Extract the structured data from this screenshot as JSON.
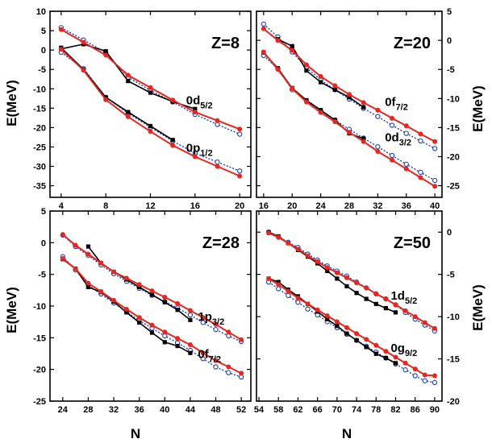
{
  "y_axis_label": "E(MeV)",
  "x_axis_label": "N",
  "colors": {
    "exp": "#000000",
    "fit": "#e8251e",
    "calc": "#1a3fb0"
  },
  "chart_data": [
    {
      "type": "line",
      "panel_label": "Z=8",
      "xlabel": "N",
      "ylabel": "E(MeV)",
      "xlim": [
        3,
        21
      ],
      "ylim": [
        -38,
        10
      ],
      "xticks": [
        4,
        8,
        12,
        16,
        20
      ],
      "yticks": [
        10,
        5,
        0,
        -5,
        -10,
        -15,
        -20,
        -25,
        -30,
        -35
      ],
      "y_axis_side": "left",
      "series": [
        {
          "role": "exp",
          "state": "0d5/2",
          "x": [
            4,
            6,
            8,
            10,
            12,
            14,
            16
          ],
          "y": [
            0.3,
            1.5,
            -0.3,
            -8.0,
            -11.0,
            -13.3,
            -15.2
          ]
        },
        {
          "role": "fit",
          "state": "0d5/2",
          "x": [
            4,
            6,
            8,
            10,
            12,
            14,
            16,
            18,
            20
          ],
          "y": [
            5.3,
            2.0,
            -1.3,
            -6.5,
            -9.7,
            -12.9,
            -16.0,
            -18.2,
            -20.4
          ]
        },
        {
          "role": "calc",
          "state": "0d5/2",
          "x": [
            4,
            6,
            8,
            10,
            12,
            14,
            16,
            18,
            20
          ],
          "y": [
            5.8,
            2.6,
            -0.6,
            -7.0,
            -10.4,
            -13.4,
            -16.6,
            -19.2,
            -21.7
          ]
        },
        {
          "role": "exp",
          "state": "0p1/2",
          "x": [
            4,
            6,
            8,
            10,
            12,
            14
          ],
          "y": [
            0.6,
            -5.0,
            -12.2,
            -16.0,
            -19.6,
            -23.2
          ]
        },
        {
          "role": "fit",
          "state": "0p1/2",
          "x": [
            4,
            6,
            8,
            10,
            12,
            14,
            16,
            18,
            20
          ],
          "y": [
            0.2,
            -5.2,
            -12.8,
            -17.2,
            -21.0,
            -24.6,
            -27.5,
            -30.0,
            -32.5
          ]
        },
        {
          "role": "calc",
          "state": "0p1/2",
          "x": [
            4,
            6,
            8,
            10,
            12,
            14,
            16,
            18,
            20
          ],
          "y": [
            -0.6,
            -4.8,
            -12.2,
            -16.3,
            -19.9,
            -23.5,
            -26.6,
            -28.9,
            -31.2
          ]
        }
      ],
      "annotations": [
        {
          "text": "0d",
          "sub": "5/2",
          "at": [
            15.2,
            -14.0
          ]
        },
        {
          "text": "0p",
          "sub": "1/2",
          "at": [
            15.2,
            -26.3
          ]
        }
      ]
    },
    {
      "type": "line",
      "panel_label": "Z=20",
      "xlabel": "N",
      "ylabel": "E(MeV)",
      "xlim": [
        15,
        41
      ],
      "ylim": [
        -27,
        5
      ],
      "xticks": [
        16,
        20,
        24,
        28,
        32,
        36,
        40
      ],
      "yticks": [
        5,
        0,
        -5,
        -10,
        -15,
        -20,
        -25
      ],
      "y_axis_side": "right",
      "series": [
        {
          "role": "exp",
          "state": "0f7/2",
          "x": [
            18,
            20,
            22,
            24,
            26,
            28,
            30
          ],
          "y": [
            0.2,
            -1.0,
            -5.2,
            -7.2,
            -8.5,
            -9.8,
            -11.5
          ]
        },
        {
          "role": "fit",
          "state": "0f7/2",
          "x": [
            16,
            18,
            20,
            22,
            24,
            26,
            28,
            30,
            32,
            34,
            36,
            38,
            40
          ],
          "y": [
            2.0,
            0.0,
            -1.7,
            -4.2,
            -6.2,
            -7.8,
            -9.3,
            -10.7,
            -12.0,
            -13.4,
            -14.7,
            -16.1,
            -17.4
          ]
        },
        {
          "role": "calc",
          "state": "0f7/2",
          "x": [
            16,
            18,
            20,
            22,
            24,
            26,
            28,
            30,
            32,
            34,
            36,
            38,
            40
          ],
          "y": [
            2.8,
            0.6,
            -2.0,
            -4.7,
            -6.8,
            -8.5,
            -10.1,
            -11.7,
            -13.1,
            -14.6,
            -16.0,
            -17.3,
            -18.6
          ]
        },
        {
          "role": "exp",
          "state": "0d3/2",
          "x": [
            16,
            18,
            20,
            22,
            24,
            26,
            28,
            30
          ],
          "y": [
            -2.1,
            -4.8,
            -8.2,
            -10.3,
            -12.0,
            -13.7,
            -16.0,
            -16.9
          ]
        },
        {
          "role": "fit",
          "state": "0d3/2",
          "x": [
            16,
            18,
            20,
            22,
            24,
            26,
            28,
            30,
            32,
            34,
            36,
            38,
            40
          ],
          "y": [
            -2.0,
            -5.0,
            -8.3,
            -10.6,
            -12.4,
            -14.0,
            -15.8,
            -17.4,
            -19.1,
            -20.6,
            -22.1,
            -23.6,
            -25.1
          ]
        },
        {
          "role": "calc",
          "state": "0d3/2",
          "x": [
            16,
            18,
            20,
            22,
            24,
            26,
            28,
            30,
            32,
            34,
            36,
            38,
            40
          ],
          "y": [
            -2.6,
            -4.9,
            -8.5,
            -10.4,
            -12.1,
            -13.7,
            -15.3,
            -16.8,
            -18.3,
            -19.8,
            -21.3,
            -22.7,
            -24.1
          ]
        }
      ],
      "annotations": [
        {
          "text": "0f",
          "sub": "7/2",
          "at": [
            33.0,
            -11.3
          ]
        },
        {
          "text": "0d",
          "sub": "3/2",
          "at": [
            33.0,
            -17.4
          ]
        }
      ]
    },
    {
      "type": "line",
      "panel_label": "Z=28",
      "xlabel": "N",
      "ylabel": "E(MeV)",
      "xlim": [
        22,
        53.5
      ],
      "ylim": [
        -25,
        5
      ],
      "xticks": [
        24,
        28,
        32,
        36,
        40,
        44,
        48,
        52
      ],
      "yticks": [
        5,
        0,
        -5,
        -10,
        -15,
        -20,
        -25
      ],
      "y_axis_side": "left",
      "series": [
        {
          "role": "exp",
          "state": "1p3/2",
          "x": [
            28,
            30,
            32,
            34,
            36,
            38,
            40,
            42,
            44
          ],
          "y": [
            -0.6,
            -3.2,
            -4.6,
            -5.8,
            -7.0,
            -8.2,
            -9.4,
            -10.6,
            -12.2
          ]
        },
        {
          "role": "fit",
          "state": "1p3/2",
          "x": [
            24,
            26,
            28,
            30,
            32,
            34,
            36,
            38,
            40,
            42,
            44,
            46,
            48,
            50,
            52
          ],
          "y": [
            1.3,
            -0.4,
            -1.8,
            -3.2,
            -4.6,
            -5.6,
            -6.6,
            -7.6,
            -8.6,
            -9.6,
            -10.7,
            -11.8,
            -12.9,
            -14.1,
            -15.3
          ]
        },
        {
          "role": "calc",
          "state": "1p3/2",
          "x": [
            24,
            26,
            28,
            30,
            32,
            34,
            36,
            38,
            40,
            42,
            44,
            46,
            48,
            50,
            52
          ],
          "y": [
            1.2,
            -0.6,
            -2.0,
            -3.5,
            -4.9,
            -6.1,
            -7.2,
            -8.3,
            -9.3,
            -10.3,
            -11.4,
            -12.6,
            -13.7,
            -14.7,
            -15.6
          ]
        },
        {
          "role": "exp",
          "state": "0f7/2",
          "x": [
            24,
            26,
            28,
            30,
            32,
            34,
            36,
            38,
            40,
            42,
            44
          ],
          "y": [
            -2.6,
            -4.1,
            -7.0,
            -7.8,
            -9.3,
            -11.0,
            -12.6,
            -14.2,
            -15.7,
            -16.3,
            -17.4
          ]
        },
        {
          "role": "fit",
          "state": "0f7/2",
          "x": [
            24,
            26,
            28,
            30,
            32,
            34,
            36,
            38,
            40,
            42,
            44,
            46,
            48,
            50,
            52
          ],
          "y": [
            -2.5,
            -4.1,
            -6.4,
            -7.7,
            -9.1,
            -10.5,
            -11.8,
            -13.0,
            -14.1,
            -15.1,
            -16.1,
            -17.4,
            -18.6,
            -19.6,
            -20.6
          ]
        },
        {
          "role": "calc",
          "state": "0f7/2",
          "x": [
            24,
            26,
            28,
            30,
            32,
            34,
            36,
            38,
            40,
            42,
            44,
            46,
            48,
            50,
            52
          ],
          "y": [
            -2.2,
            -4.3,
            -6.7,
            -8.1,
            -9.5,
            -10.9,
            -12.3,
            -13.5,
            -14.7,
            -15.8,
            -17.0,
            -18.3,
            -19.6,
            -20.5,
            -21.2
          ]
        }
      ],
      "annotations": [
        {
          "text": "1p",
          "sub": "3/2",
          "at": [
            45.2,
            -12.3
          ]
        },
        {
          "text": "0f",
          "sub": "7/2",
          "at": [
            45.2,
            -18.2
          ]
        }
      ]
    },
    {
      "type": "line",
      "panel_label": "Z=50",
      "xlabel": "N",
      "ylabel": "E(MeV)",
      "xlim": [
        53.5,
        91.5
      ],
      "ylim": [
        -20,
        2.5
      ],
      "xticks": [
        54,
        58,
        62,
        66,
        70,
        74,
        78,
        82,
        86,
        90
      ],
      "yticks": [
        0,
        -5,
        -10,
        -15,
        -20
      ],
      "y_axis_side": "right",
      "series": [
        {
          "role": "exp",
          "state": "1d5/2",
          "x": [
            56,
            58,
            60,
            62,
            64,
            66,
            68,
            70,
            72,
            74,
            76,
            78,
            80,
            82
          ],
          "y": [
            0.0,
            -0.5,
            -1.3,
            -2.1,
            -2.9,
            -3.7,
            -4.6,
            -5.5,
            -6.4,
            -7.2,
            -7.9,
            -8.5,
            -9.0,
            -9.5
          ]
        },
        {
          "role": "fit",
          "state": "1d5/2",
          "x": [
            56,
            58,
            60,
            62,
            64,
            66,
            68,
            70,
            72,
            74,
            76,
            78,
            80,
            82,
            84,
            86,
            88,
            90
          ],
          "y": [
            -0.1,
            -0.6,
            -1.3,
            -2.0,
            -2.8,
            -3.5,
            -4.2,
            -4.8,
            -5.4,
            -6.0,
            -6.6,
            -7.3,
            -7.9,
            -8.6,
            -9.3,
            -10.0,
            -10.7,
            -11.4
          ]
        },
        {
          "role": "calc",
          "state": "1d5/2",
          "x": [
            56,
            58,
            60,
            62,
            64,
            66,
            68,
            70,
            72,
            74,
            76,
            78,
            80,
            82,
            84,
            86,
            88,
            90
          ],
          "y": [
            0.0,
            -0.6,
            -1.2,
            -1.8,
            -2.6,
            -3.3,
            -4.0,
            -4.6,
            -5.2,
            -5.9,
            -6.6,
            -7.3,
            -7.9,
            -8.6,
            -9.5,
            -10.3,
            -11.0,
            -11.7
          ]
        },
        {
          "role": "exp",
          "state": "0g9/2",
          "x": [
            56,
            58,
            60,
            62,
            64,
            66,
            68,
            70,
            72,
            74,
            76,
            78,
            80,
            82
          ],
          "y": [
            -5.5,
            -5.9,
            -6.8,
            -7.6,
            -8.5,
            -9.4,
            -10.3,
            -11.1,
            -12.0,
            -12.8,
            -13.6,
            -14.4,
            -14.9,
            -15.5
          ]
        },
        {
          "role": "fit",
          "state": "0g9/2",
          "x": [
            56,
            58,
            60,
            62,
            64,
            66,
            68,
            70,
            72,
            74,
            76,
            78,
            80,
            82,
            84,
            86,
            88,
            90
          ],
          "y": [
            -5.5,
            -6.2,
            -7.0,
            -7.8,
            -8.5,
            -9.2,
            -9.9,
            -10.6,
            -11.3,
            -12.0,
            -12.7,
            -13.4,
            -14.1,
            -14.8,
            -15.5,
            -16.2,
            -16.9,
            -17.0
          ]
        },
        {
          "role": "calc",
          "state": "0g9/2",
          "x": [
            56,
            58,
            60,
            62,
            64,
            66,
            68,
            70,
            72,
            74,
            76,
            78,
            80,
            82,
            84,
            86,
            88,
            90
          ],
          "y": [
            -5.9,
            -6.7,
            -7.5,
            -8.3,
            -9.1,
            -9.8,
            -10.6,
            -11.3,
            -12.1,
            -12.8,
            -13.5,
            -14.2,
            -14.9,
            -15.6,
            -16.3,
            -17.0,
            -17.6,
            -17.8
          ]
        }
      ],
      "annotations": [
        {
          "text": "1d",
          "sub": "5/2",
          "at": [
            81.0,
            -8.0
          ]
        },
        {
          "text": "0g",
          "sub": "9/2",
          "at": [
            81.0,
            -14.2
          ]
        }
      ]
    }
  ]
}
